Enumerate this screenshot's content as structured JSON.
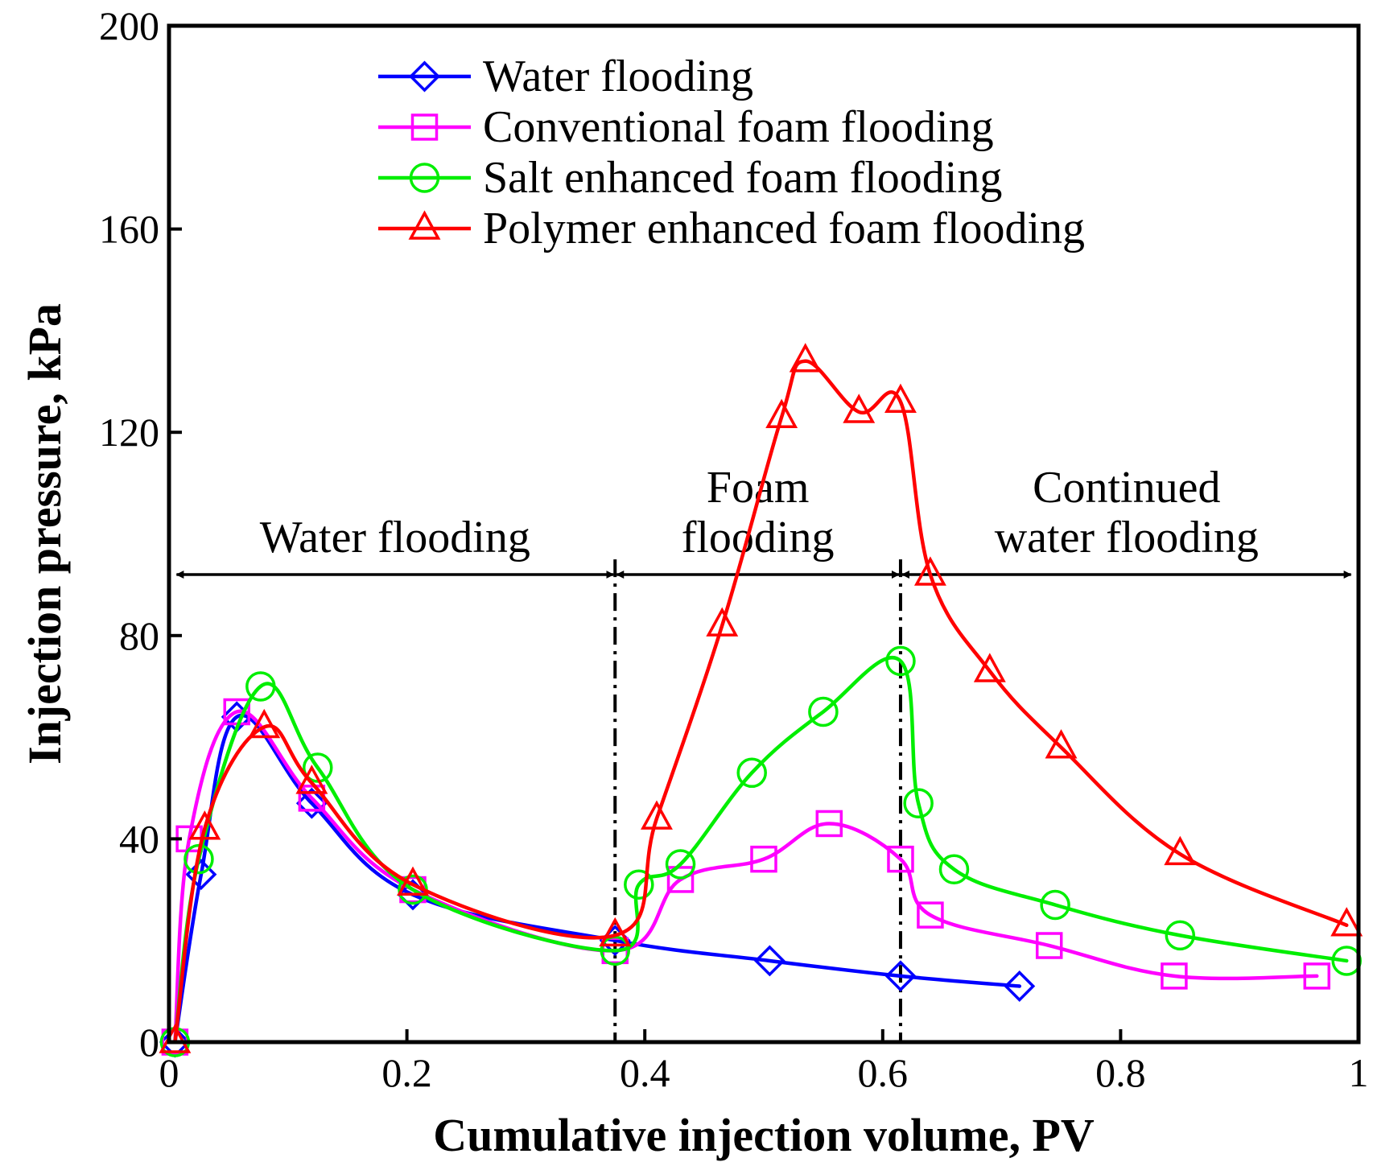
{
  "chart_data": {
    "type": "line",
    "xlabel": "Cumulative injection volume, PV",
    "ylabel": "Injection pressure, kPa",
    "xlim": [
      0,
      1
    ],
    "ylim": [
      0,
      200
    ],
    "x_ticks": [
      "0",
      "0.2",
      "0.4",
      "0.6",
      "0.8",
      "1"
    ],
    "x_tick_values": [
      0,
      0.2,
      0.4,
      0.6,
      0.8,
      1.0
    ],
    "y_ticks": [
      "0",
      "40",
      "80",
      "120",
      "160",
      "200"
    ],
    "y_tick_values": [
      0,
      40,
      80,
      120,
      160,
      200
    ],
    "grid": false,
    "legend_position": "top-center",
    "stage_boundaries": [
      0.375,
      0.615
    ],
    "regions": [
      {
        "lines": [
          "Water flooding"
        ],
        "x_start": 0.005,
        "x_end": 0.375
      },
      {
        "lines": [
          "Foam",
          "flooding"
        ],
        "x_start": 0.375,
        "x_end": 0.615
      },
      {
        "lines": [
          "Continued",
          "water flooding"
        ],
        "x_start": 0.615,
        "x_end": 0.995
      }
    ],
    "region_arrow_y": 92,
    "series": [
      {
        "name": "Water flooding",
        "color": "#0000ff",
        "marker": "diamond",
        "x": [
          0.005,
          0.027,
          0.057,
          0.12,
          0.205,
          0.375,
          0.505,
          0.615,
          0.715
        ],
        "y": [
          0,
          33,
          64,
          47,
          29,
          20,
          16,
          13,
          11
        ]
      },
      {
        "name": "Conventional foam flooding",
        "color": "#ff00ff",
        "marker": "square",
        "x": [
          0.005,
          0.017,
          0.057,
          0.12,
          0.205,
          0.375,
          0.43,
          0.5,
          0.555,
          0.615,
          0.64,
          0.74,
          0.845,
          0.965
        ],
        "y": [
          0,
          40,
          65,
          48,
          30,
          18,
          32,
          36,
          43,
          36,
          25,
          19,
          13,
          13
        ]
      },
      {
        "name": "Salt enhanced foam flooding",
        "color": "#00ee00",
        "marker": "circle",
        "x": [
          0.005,
          0.025,
          0.077,
          0.125,
          0.205,
          0.375,
          0.395,
          0.43,
          0.49,
          0.55,
          0.615,
          0.63,
          0.66,
          0.745,
          0.85,
          0.99
        ],
        "y": [
          0,
          36,
          70,
          54,
          30,
          18,
          31,
          35,
          53,
          65,
          75,
          47,
          34,
          27,
          21,
          16
        ]
      },
      {
        "name": "Polymer enhanced foam flooding",
        "color": "#ff0000",
        "marker": "triangle",
        "x": [
          0.005,
          0.03,
          0.08,
          0.12,
          0.205,
          0.375,
          0.41,
          0.465,
          0.515,
          0.535,
          0.58,
          0.615,
          0.64,
          0.69,
          0.75,
          0.85,
          0.99
        ],
        "y": [
          0,
          42,
          62,
          51,
          31,
          21,
          44,
          82,
          123,
          134,
          124,
          126,
          92,
          73,
          58,
          37,
          23
        ]
      }
    ]
  }
}
